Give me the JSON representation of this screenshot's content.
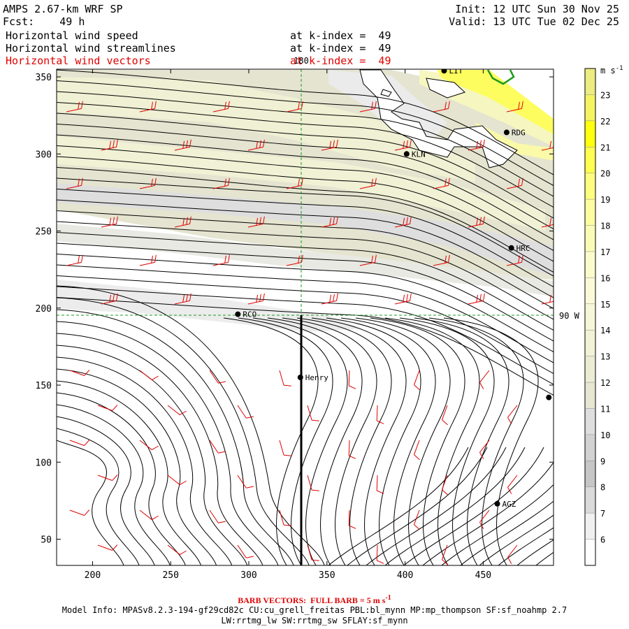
{
  "header": {
    "model": "AMPS 2.67-km WRF SP",
    "fcst_label": "Fcst:",
    "fcst_value": "49 h",
    "init": "Init: 12 UTC Sun 30 Nov 25",
    "valid": "Valid: 13 UTC Tue 02 Dec 25"
  },
  "fields": [
    {
      "name": "Horizontal wind speed",
      "level": "at k-index =  49",
      "color": "#000000"
    },
    {
      "name": "Horizontal wind streamlines",
      "level": "at k-index =  49",
      "color": "#000000"
    },
    {
      "name": "Horizontal wind vectors",
      "level": "at k-index =  49",
      "color": "#e00000"
    }
  ],
  "axes": {
    "x_ticks": [
      "200",
      "250",
      "300",
      "350",
      "400",
      "450"
    ],
    "y_ticks": [
      "350",
      "300",
      "250",
      "200",
      "150",
      "100",
      "50"
    ],
    "xlim": [
      177,
      495
    ],
    "ylim": [
      33,
      355
    ]
  },
  "meridian_label": "180",
  "parallel_label": "90 W",
  "stations": [
    {
      "id": "LIT",
      "x": 425,
      "y": 354
    },
    {
      "id": "RDG",
      "x": 465,
      "y": 314
    },
    {
      "id": "KLN",
      "x": 401,
      "y": 300
    },
    {
      "id": "HRC",
      "x": 468,
      "y": 239
    },
    {
      "id": "RCO",
      "x": 293,
      "y": 196
    },
    {
      "id": "Henry",
      "x": 333,
      "y": 155
    },
    {
      "id": "AGZ",
      "x": 459,
      "y": 73
    },
    {
      "id": "",
      "x": 492,
      "y": 142
    }
  ],
  "colorbar": {
    "units": "m s",
    "units_sup": "-1",
    "levels": [
      "6",
      "7",
      "8",
      "9",
      "10",
      "11",
      "12",
      "13",
      "14",
      "15",
      "16",
      "17",
      "18",
      "19",
      "20",
      "21",
      "22",
      "23"
    ],
    "colors": [
      "#ffffff",
      "#f0f0f0",
      "#dadada",
      "#c6c6c6",
      "#d2d2d2",
      "#dedede",
      "#e6e6d2",
      "#ececd4",
      "#f2f2d6",
      "#f6f6d8",
      "#fafad8",
      "#fbfbcc",
      "#fbfbb8",
      "#fcfca0",
      "#fdfd80",
      "#fefe50",
      "#ffff10",
      "#f4f460",
      "#ecec80"
    ]
  },
  "footer": {
    "barb_note": "BARB VECTORS:  FULL BARB = 5 m s",
    "barb_sup": "-1",
    "model_info_1": "Model Info: MPASv8.2.3-194-gf29cd82c CU:cu_grell_freitas PBL:bl_mynn MP:mp_thompson SF:sf_noahmp 2.7",
    "model_info_2": "LW:rrtmg_lw SW:rrtmg_sw SFLAY:sf_mynn"
  }
}
